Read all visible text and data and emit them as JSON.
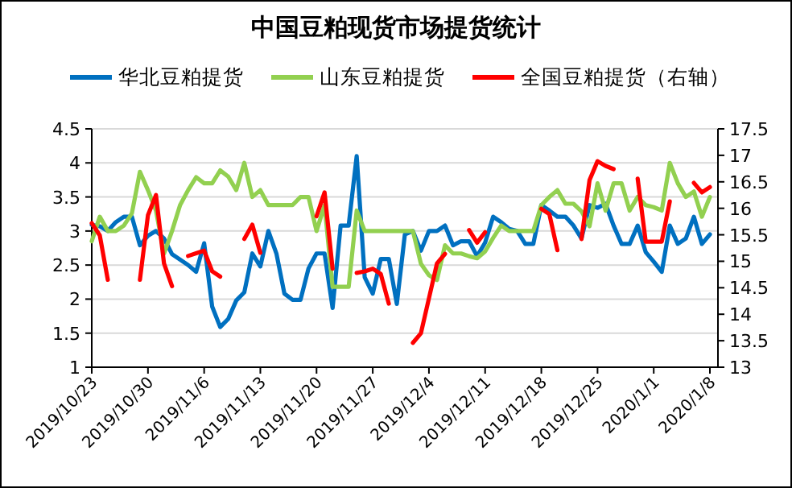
{
  "chart_data": {
    "type": "line",
    "title": "中国豆粕现货市场提货统计",
    "x": [
      "2019-10-23",
      "2019-10-24",
      "2019-10-25",
      "2019-10-26",
      "2019-10-27",
      "2019-10-28",
      "2019-10-29",
      "2019-10-30",
      "2019-10-31",
      "2019-11-01",
      "2019-11-02",
      "2019-11-03",
      "2019-11-04",
      "2019-11-05",
      "2019-11-06",
      "2019-11-07",
      "2019-11-08",
      "2019-11-09",
      "2019-11-10",
      "2019-11-11",
      "2019-11-12",
      "2019-11-13",
      "2019-11-14",
      "2019-11-15",
      "2019-11-16",
      "2019-11-17",
      "2019-11-18",
      "2019-11-19",
      "2019-11-20",
      "2019-11-21",
      "2019-11-22",
      "2019-11-23",
      "2019-11-24",
      "2019-11-25",
      "2019-11-26",
      "2019-11-27",
      "2019-11-28",
      "2019-11-29",
      "2019-11-30",
      "2019-12-01",
      "2019-12-02",
      "2019-12-03",
      "2019-12-04",
      "2019-12-05",
      "2019-12-06",
      "2019-12-07",
      "2019-12-08",
      "2019-12-09",
      "2019-12-10",
      "2019-12-11",
      "2019-12-12",
      "2019-12-13",
      "2019-12-14",
      "2019-12-15",
      "2019-12-16",
      "2019-12-17",
      "2019-12-18",
      "2019-12-19",
      "2019-12-20",
      "2019-12-21",
      "2019-12-22",
      "2019-12-23",
      "2019-12-24",
      "2019-12-25",
      "2019-12-26",
      "2019-12-27",
      "2019-12-28",
      "2019-12-29",
      "2019-12-30",
      "2019-12-31",
      "2020-01-01",
      "2020-01-02",
      "2020-01-03",
      "2020-01-04",
      "2020-01-05",
      "2020-01-06",
      "2020-01-07",
      "2020-01-08"
    ],
    "series": [
      {
        "name": "华北豆粕提货",
        "color": "#0070c0",
        "values": [
          3.09,
          3.07,
          3.0,
          3.13,
          3.21,
          3.21,
          2.79,
          2.93,
          3.0,
          2.89,
          2.66,
          2.58,
          2.5,
          2.4,
          2.82,
          1.89,
          1.59,
          1.71,
          1.98,
          2.1,
          2.67,
          2.48,
          3.0,
          2.67,
          2.08,
          1.99,
          1.99,
          2.45,
          2.67,
          2.67,
          1.87,
          3.08,
          3.08,
          4.1,
          2.32,
          2.08,
          2.59,
          2.59,
          1.93,
          2.95,
          3.0,
          2.71,
          3.0,
          3.0,
          3.08,
          2.79,
          2.85,
          2.85,
          2.63,
          2.83,
          3.21,
          3.13,
          3.03,
          3.0,
          2.81,
          2.81,
          3.38,
          3.3,
          3.21,
          3.21,
          3.08,
          2.89,
          3.38,
          3.34,
          3.4,
          3.08,
          2.81,
          2.81,
          3.08,
          2.69,
          2.55,
          2.4,
          3.08,
          2.81,
          2.89,
          3.21,
          2.81,
          2.95
        ]
      },
      {
        "name": "山东豆粕提货",
        "color": "#92d050",
        "values": [
          2.85,
          3.21,
          3.0,
          3.0,
          3.08,
          3.26,
          3.87,
          3.6,
          3.3,
          2.67,
          3.0,
          3.38,
          3.6,
          3.79,
          3.7,
          3.7,
          3.89,
          3.8,
          3.6,
          4.0,
          3.5,
          3.6,
          3.38,
          3.38,
          3.38,
          3.38,
          3.5,
          3.5,
          3.0,
          3.38,
          2.18,
          2.18,
          2.18,
          3.3,
          3.0,
          3.0,
          3.0,
          3.0,
          3.0,
          3.0,
          3.0,
          2.52,
          2.35,
          2.28,
          2.79,
          2.67,
          2.67,
          2.63,
          2.6,
          2.7,
          2.9,
          3.08,
          3.0,
          3.0,
          3.0,
          3.0,
          3.38,
          3.5,
          3.6,
          3.4,
          3.4,
          3.29,
          3.07,
          3.7,
          3.3,
          3.7,
          3.7,
          3.3,
          3.5,
          3.38,
          3.35,
          3.3,
          4.0,
          3.7,
          3.5,
          3.58,
          3.21,
          3.5
        ]
      },
      {
        "name": "全国豆粕提货（右轴）",
        "color": "#ff0000",
        "axis": "y2",
        "values": [
          15.72,
          15.49,
          14.65,
          null,
          null,
          null,
          14.65,
          15.87,
          16.25,
          14.96,
          14.53,
          null,
          15.1,
          15.15,
          15.2,
          14.81,
          14.71,
          null,
          null,
          15.42,
          15.69,
          15.16,
          null,
          null,
          null,
          null,
          null,
          null,
          15.85,
          16.3,
          14.86,
          null,
          null,
          14.78,
          14.81,
          14.86,
          14.76,
          14.2,
          null,
          null,
          13.46,
          13.64,
          14.3,
          14.96,
          15.14,
          null,
          null,
          15.59,
          15.35,
          15.55,
          null,
          null,
          null,
          null,
          null,
          null,
          15.99,
          15.89,
          15.21,
          null,
          null,
          15.42,
          16.53,
          16.89,
          16.8,
          16.74,
          null,
          null,
          16.56,
          15.37,
          15.37,
          15.37,
          16.13,
          null,
          null,
          16.48,
          16.3,
          16.4
        ]
      }
    ],
    "xlim": [
      "2019-10-23",
      "2020-01-09"
    ],
    "xticks": [
      {
        "value": "2019-10-23",
        "label": "2019/10/23"
      },
      {
        "value": "2019-10-30",
        "label": "2019/10/30"
      },
      {
        "value": "2019-11-06",
        "label": "2019/11/6"
      },
      {
        "value": "2019-11-13",
        "label": "2019/11/13"
      },
      {
        "value": "2019-11-20",
        "label": "2019/11/20"
      },
      {
        "value": "2019-11-27",
        "label": "2019/11/27"
      },
      {
        "value": "2019-12-04",
        "label": "2019/12/4"
      },
      {
        "value": "2019-12-11",
        "label": "2019/12/11"
      },
      {
        "value": "2019-12-18",
        "label": "2019/12/18"
      },
      {
        "value": "2019-12-25",
        "label": "2019/12/25"
      },
      {
        "value": "2020-01-01",
        "label": "2020/1/1"
      },
      {
        "value": "2020-01-08",
        "label": "2020/1/8"
      }
    ],
    "ylim": [
      1,
      4.5
    ],
    "yticks": [
      1,
      1.5,
      2,
      2.5,
      3,
      3.5,
      4,
      4.5
    ],
    "y2lim": [
      13,
      17.5
    ],
    "y2ticks": [
      13,
      13.5,
      14,
      14.5,
      15,
      15.5,
      16,
      16.5,
      17,
      17.5
    ],
    "grid": "y",
    "legend": "top",
    "marker": "none",
    "line_style": "solid"
  }
}
